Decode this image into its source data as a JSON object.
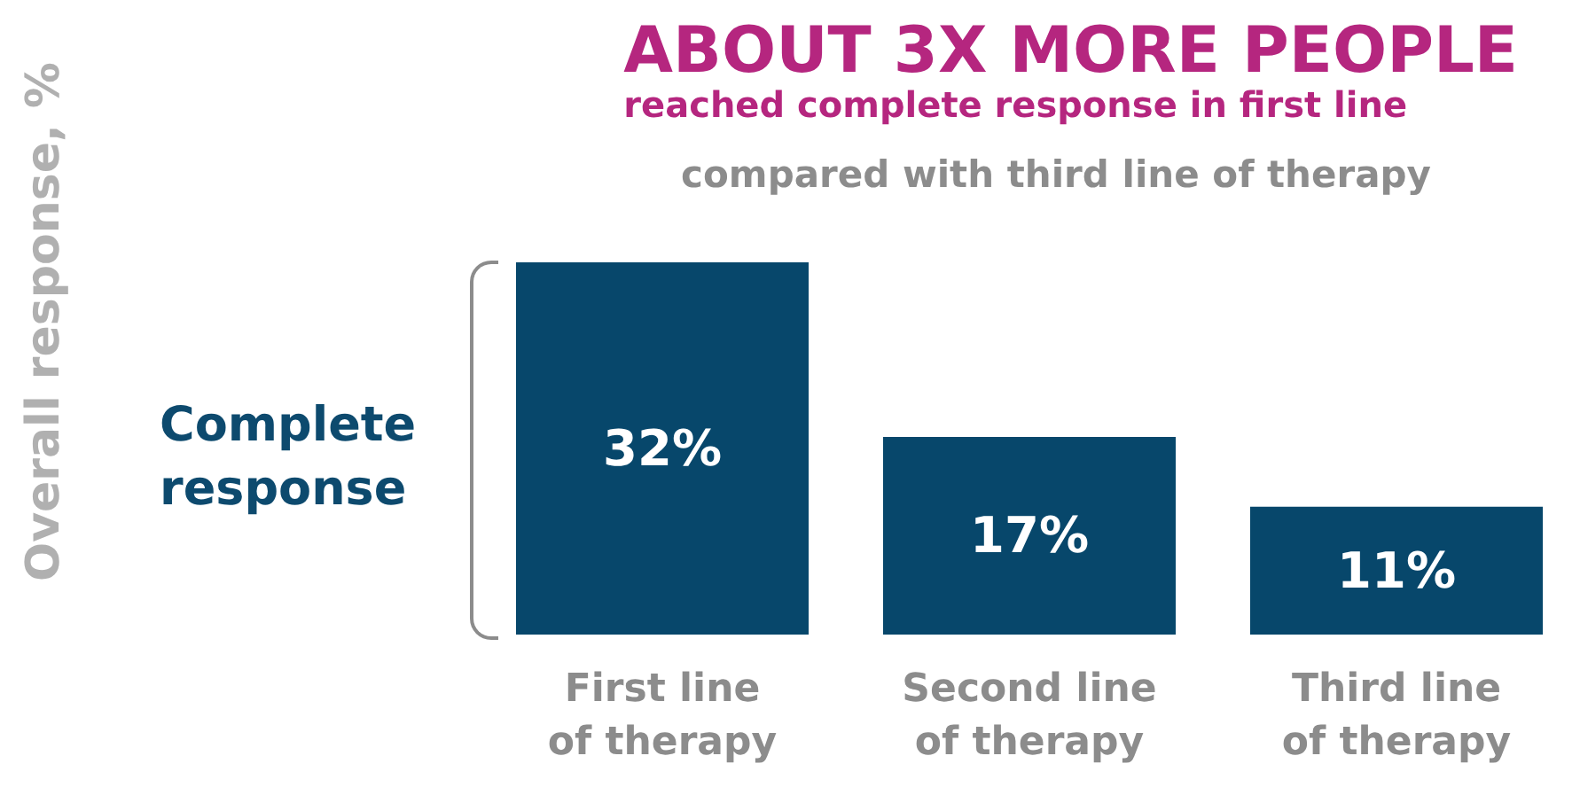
{
  "chart_data": {
    "type": "bar",
    "title": "ABOUT 3X MORE PEOPLE",
    "subtitle": "reached complete response in first line",
    "annotations": [
      "compared with third line of therapy",
      "Complete\nresponse",
      "Overall response, %"
    ],
    "categories": [
      "First line\nof therapy",
      "Second line\nof therapy",
      "Third line\nof therapy"
    ],
    "values": [
      32,
      17,
      11
    ],
    "value_labels": [
      "32%",
      "17%",
      "11%"
    ],
    "color": "#07476b",
    "grid": false
  }
}
